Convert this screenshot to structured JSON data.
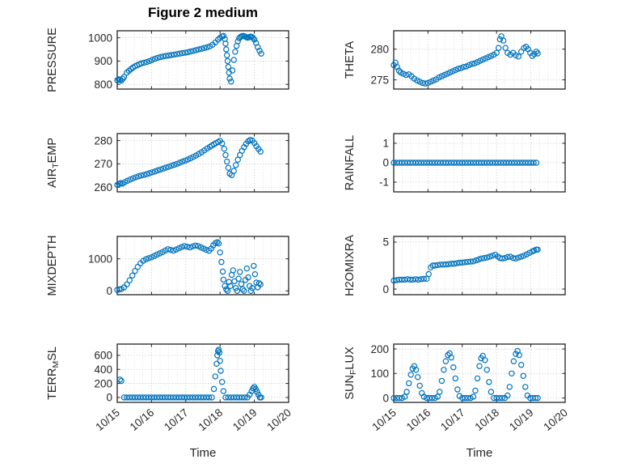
{
  "figure": {
    "title": "Figure 2 medium",
    "xlabel": "Time",
    "xtick_labels": [
      "10/15",
      "10/16",
      "10/17",
      "10/18",
      "10/19",
      "10/20"
    ],
    "accent_color": "#0072BD",
    "axis_color": "#222222",
    "text_color": "#262626",
    "grid_major_color": "#bdbdbd",
    "grid_minor_color": "#d9d9d9"
  },
  "chart_data": [
    {
      "type": "scatter",
      "marker": "o",
      "name": "pressure",
      "ylabel": "PRESSURE",
      "row": 0,
      "col": 0,
      "xlim": [
        0,
        5
      ],
      "ylim": [
        780,
        1030
      ],
      "yticks": [
        800,
        900,
        1000
      ],
      "x": [
        0,
        0.04,
        0.08,
        0.12,
        0.16,
        0.2,
        0.28,
        0.34,
        0.4,
        0.46,
        0.52,
        0.58,
        0.64,
        0.7,
        0.78,
        0.86,
        0.94,
        1.02,
        1.1,
        1.18,
        1.26,
        1.34,
        1.42,
        1.5,
        1.58,
        1.66,
        1.74,
        1.82,
        1.9,
        1.98,
        2.06,
        2.14,
        2.22,
        2.3,
        2.38,
        2.46,
        2.54,
        2.62,
        2.7,
        2.78,
        2.86,
        2.94,
        3,
        3.06,
        3.1,
        3.14,
        3.16,
        3.18,
        3.2,
        3.22,
        3.24,
        3.26,
        3.28,
        3.32,
        3.36,
        3.4,
        3.44,
        3.48,
        3.52,
        3.56,
        3.6,
        3.64,
        3.68,
        3.72,
        3.76,
        3.8,
        3.84,
        3.88,
        3.92,
        3.96,
        4,
        4.05,
        4.1,
        4.15,
        4.2
      ],
      "y": [
        818,
        822,
        820,
        816,
        824,
        832,
        850,
        858,
        866,
        872,
        878,
        882,
        886,
        890,
        893,
        896,
        900,
        905,
        910,
        914,
        917,
        920,
        922,
        924,
        926,
        928,
        930,
        932,
        934,
        936,
        938,
        941,
        944,
        947,
        950,
        953,
        956,
        959,
        963,
        970,
        980,
        992,
        1000,
        1006,
        1008,
        995,
        975,
        950,
        925,
        900,
        875,
        850,
        825,
        812,
        860,
        905,
        940,
        965,
        985,
        998,
        1004,
        1007,
        1008,
        1006,
        1003,
        1000,
        1002,
        1005,
        1004,
        1000,
        992,
        978,
        960,
        944,
        932
      ]
    },
    {
      "type": "scatter",
      "marker": "o",
      "name": "theta",
      "ylabel": "THETA",
      "row": 0,
      "col": 1,
      "xlim": [
        0,
        5
      ],
      "ylim": [
        273.5,
        283
      ],
      "yticks": [
        275,
        280
      ],
      "x": [
        0,
        0.05,
        0.1,
        0.15,
        0.2,
        0.28,
        0.36,
        0.44,
        0.52,
        0.6,
        0.68,
        0.76,
        0.84,
        0.92,
        1,
        1.08,
        1.16,
        1.24,
        1.32,
        1.4,
        1.48,
        1.56,
        1.64,
        1.72,
        1.8,
        1.88,
        1.96,
        2.04,
        2.12,
        2.2,
        2.28,
        2.36,
        2.44,
        2.52,
        2.6,
        2.68,
        2.76,
        2.84,
        2.92,
        3,
        3.06,
        3.1,
        3.14,
        3.2,
        3.26,
        3.32,
        3.4,
        3.48,
        3.56,
        3.64,
        3.72,
        3.8,
        3.86,
        3.92,
        3.98,
        4.04,
        4.1,
        4.16,
        4.2
      ],
      "y": [
        277.4,
        277.8,
        277.1,
        276.5,
        276.2,
        276,
        275.8,
        275.9,
        275.6,
        275.2,
        274.9,
        274.7,
        274.5,
        274.4,
        274.5,
        274.7,
        274.9,
        275.1,
        275.4,
        275.6,
        275.8,
        276,
        276.2,
        276.4,
        276.6,
        276.8,
        276.9,
        277.1,
        277.2,
        277.4,
        277.6,
        277.7,
        277.9,
        278.1,
        278.3,
        278.5,
        278.7,
        278.9,
        279.1,
        279.4,
        280.2,
        281.6,
        282.1,
        281.4,
        280.2,
        279.4,
        279.1,
        279.4,
        279,
        278.8,
        279.6,
        280.2,
        280.4,
        280,
        279.4,
        278.9,
        279.2,
        279.6,
        279.3
      ]
    },
    {
      "type": "scatter",
      "marker": "o",
      "name": "air-temp",
      "ylabel": "AIR_{T}EMP",
      "row": 1,
      "col": 0,
      "xlim": [
        0,
        5
      ],
      "ylim": [
        258,
        283
      ],
      "yticks": [
        260,
        270,
        280
      ],
      "x": [
        0,
        0.05,
        0.1,
        0.15,
        0.22,
        0.3,
        0.38,
        0.46,
        0.54,
        0.62,
        0.7,
        0.78,
        0.86,
        0.94,
        1.02,
        1.1,
        1.18,
        1.26,
        1.34,
        1.42,
        1.5,
        1.58,
        1.66,
        1.74,
        1.82,
        1.9,
        1.98,
        2.06,
        2.14,
        2.22,
        2.3,
        2.38,
        2.46,
        2.54,
        2.62,
        2.7,
        2.76,
        2.82,
        2.88,
        2.94,
        3,
        3.06,
        3.12,
        3.16,
        3.2,
        3.24,
        3.28,
        3.34,
        3.4,
        3.46,
        3.52,
        3.58,
        3.64,
        3.7,
        3.76,
        3.82,
        3.88,
        3.94,
        4,
        4.06,
        4.12,
        4.18
      ],
      "y": [
        261,
        261.4,
        261.8,
        261.5,
        262.2,
        262.8,
        263.3,
        263.8,
        264.3,
        264.7,
        265,
        265.3,
        265.6,
        266,
        266.4,
        266.8,
        267.2,
        267.6,
        268,
        268.4,
        268.8,
        269.2,
        269.6,
        270,
        270.5,
        271,
        271.4,
        271.9,
        272.4,
        273,
        273.6,
        274.3,
        275,
        275.8,
        276.6,
        277.3,
        277.9,
        278.4,
        278.9,
        279.4,
        279.9,
        278.8,
        276.5,
        273.8,
        271,
        268.3,
        265.8,
        265.2,
        267,
        269.5,
        271.8,
        273.8,
        275.6,
        277.2,
        278.6,
        279.7,
        280.3,
        280,
        278.9,
        277.6,
        276.4,
        275.3
      ]
    },
    {
      "type": "scatter",
      "marker": "o",
      "name": "rainfall",
      "ylabel": "RAINFALL",
      "row": 1,
      "col": 1,
      "xlim": [
        0,
        5
      ],
      "ylim": [
        -1.5,
        1.5
      ],
      "yticks": [
        -1,
        0,
        1
      ],
      "x": [
        0,
        0.08,
        0.16,
        0.24,
        0.32,
        0.4,
        0.48,
        0.56,
        0.64,
        0.72,
        0.8,
        0.88,
        0.96,
        1.04,
        1.12,
        1.2,
        1.28,
        1.36,
        1.44,
        1.52,
        1.6,
        1.68,
        1.76,
        1.84,
        1.92,
        2,
        2.08,
        2.16,
        2.24,
        2.32,
        2.4,
        2.48,
        2.56,
        2.64,
        2.72,
        2.8,
        2.88,
        2.96,
        3.04,
        3.12,
        3.2,
        3.28,
        3.36,
        3.44,
        3.52,
        3.6,
        3.68,
        3.76,
        3.84,
        3.92,
        4,
        4.08,
        4.16
      ],
      "y": [
        0,
        0,
        0,
        0,
        0,
        0,
        0,
        0,
        0,
        0,
        0,
        0,
        0,
        0,
        0,
        0,
        0,
        0,
        0,
        0,
        0,
        0,
        0,
        0,
        0,
        0,
        0,
        0,
        0,
        0,
        0,
        0,
        0,
        0,
        0,
        0,
        0,
        0,
        0,
        0,
        0,
        0,
        0,
        0,
        0,
        0,
        0,
        0,
        0,
        0,
        0,
        0,
        0
      ]
    },
    {
      "type": "scatter",
      "marker": "o",
      "name": "mixdepth",
      "ylabel": "MIXDEPTH",
      "row": 2,
      "col": 0,
      "xlim": [
        0,
        5
      ],
      "ylim": [
        -120,
        1700
      ],
      "yticks": [
        0,
        1000
      ],
      "x": [
        0,
        0.06,
        0.12,
        0.2,
        0.28,
        0.36,
        0.44,
        0.52,
        0.6,
        0.68,
        0.76,
        0.84,
        0.92,
        1,
        1.08,
        1.16,
        1.24,
        1.32,
        1.4,
        1.48,
        1.56,
        1.64,
        1.72,
        1.8,
        1.88,
        1.96,
        2.04,
        2.12,
        2.2,
        2.28,
        2.36,
        2.44,
        2.52,
        2.6,
        2.68,
        2.74,
        2.8,
        2.86,
        2.92,
        2.96,
        3,
        3.04,
        3.08,
        3.1,
        3.14,
        3.18,
        3.22,
        3.26,
        3.3,
        3.34,
        3.38,
        3.42,
        3.46,
        3.5,
        3.54,
        3.58,
        3.62,
        3.66,
        3.7,
        3.74,
        3.78,
        3.82,
        3.86,
        3.9,
        3.94,
        3.98,
        4.02,
        4.06,
        4.1,
        4.14,
        4.18
      ],
      "y": [
        30,
        45,
        60,
        110,
        200,
        330,
        480,
        620,
        750,
        860,
        940,
        990,
        1020,
        1050,
        1090,
        1130,
        1170,
        1210,
        1260,
        1300,
        1280,
        1255,
        1290,
        1330,
        1370,
        1400,
        1380,
        1355,
        1390,
        1415,
        1400,
        1360,
        1320,
        1280,
        1250,
        1320,
        1420,
        1490,
        1520,
        1480,
        1200,
        900,
        600,
        350,
        150,
        50,
        0,
        280,
        150,
        500,
        640,
        300,
        90,
        0,
        380,
        590,
        210,
        50,
        0,
        340,
        700,
        420,
        150,
        0,
        90,
        780,
        520,
        260,
        110,
        240,
        200
      ]
    },
    {
      "type": "scatter",
      "marker": "o",
      "name": "h2omixra",
      "ylabel": "H2OMIXRA",
      "row": 2,
      "col": 1,
      "xlim": [
        0,
        5
      ],
      "ylim": [
        -0.6,
        5.6
      ],
      "yticks": [
        0,
        5
      ],
      "x": [
        0,
        0.08,
        0.16,
        0.24,
        0.32,
        0.4,
        0.48,
        0.56,
        0.64,
        0.72,
        0.8,
        0.88,
        0.96,
        1.02,
        1.08,
        1.14,
        1.2,
        1.28,
        1.36,
        1.44,
        1.52,
        1.6,
        1.68,
        1.76,
        1.84,
        1.92,
        2,
        2.08,
        2.16,
        2.24,
        2.32,
        2.4,
        2.48,
        2.56,
        2.64,
        2.72,
        2.8,
        2.88,
        2.96,
        3.04,
        3.1,
        3.16,
        3.24,
        3.32,
        3.4,
        3.48,
        3.56,
        3.64,
        3.72,
        3.8,
        3.88,
        3.96,
        4.04,
        4.1,
        4.16,
        4.2
      ],
      "y": [
        0.9,
        0.95,
        1,
        1,
        1,
        1.05,
        1,
        1,
        1.05,
        1,
        1.05,
        1.1,
        1.1,
        1.6,
        2.3,
        2.5,
        2.5,
        2.55,
        2.6,
        2.6,
        2.62,
        2.65,
        2.7,
        2.7,
        2.75,
        2.8,
        2.82,
        2.85,
        2.9,
        2.92,
        2.95,
        3.05,
        3.15,
        3.25,
        3.3,
        3.35,
        3.45,
        3.55,
        3.65,
        3.45,
        3.3,
        3.25,
        3.3,
        3.4,
        3.45,
        3.3,
        3.25,
        3.35,
        3.45,
        3.55,
        3.7,
        3.85,
        4,
        4.1,
        4.2,
        4.2
      ]
    },
    {
      "type": "scatter",
      "marker": "o",
      "name": "terr-msl",
      "ylabel": "TERR_{M}SL",
      "row": 3,
      "col": 0,
      "xlim": [
        0,
        5
      ],
      "ylim": [
        -70,
        760
      ],
      "yticks": [
        0,
        200,
        400,
        600
      ],
      "x": [
        0.08,
        0.12,
        0.2,
        0.28,
        0.36,
        0.44,
        0.52,
        0.6,
        0.68,
        0.76,
        0.84,
        0.92,
        1,
        1.08,
        1.16,
        1.24,
        1.32,
        1.4,
        1.48,
        1.56,
        1.64,
        1.72,
        1.8,
        1.88,
        1.96,
        2.04,
        2.12,
        2.2,
        2.28,
        2.36,
        2.44,
        2.52,
        2.6,
        2.68,
        2.76,
        2.82,
        2.86,
        2.9,
        2.92,
        2.94,
        2.96,
        2.98,
        3,
        3.02,
        3.06,
        3.1,
        3.16,
        3.24,
        3.32,
        3.4,
        3.48,
        3.56,
        3.64,
        3.72,
        3.8,
        3.86,
        3.92,
        3.96,
        4,
        4.04,
        4.08,
        4.12,
        4.16,
        4.2
      ],
      "y": [
        255,
        235,
        0,
        0,
        0,
        0,
        0,
        0,
        0,
        0,
        0,
        0,
        0,
        0,
        0,
        0,
        0,
        0,
        0,
        0,
        0,
        0,
        0,
        0,
        0,
        0,
        0,
        0,
        0,
        0,
        0,
        0,
        0,
        0,
        0,
        120,
        300,
        480,
        600,
        660,
        680,
        640,
        520,
        380,
        220,
        90,
        0,
        0,
        0,
        0,
        0,
        0,
        0,
        0,
        0,
        40,
        90,
        130,
        150,
        120,
        80,
        40,
        0,
        0
      ]
    },
    {
      "type": "scatter",
      "marker": "o",
      "name": "sun-flux",
      "ylabel": "SUN_{F}LUX",
      "row": 3,
      "col": 1,
      "xlim": [
        0,
        5
      ],
      "ylim": [
        -18,
        220
      ],
      "yticks": [
        0,
        100,
        200
      ],
      "x": [
        0,
        0.08,
        0.16,
        0.24,
        0.32,
        0.38,
        0.44,
        0.5,
        0.55,
        0.6,
        0.65,
        0.7,
        0.76,
        0.82,
        0.88,
        0.96,
        1.04,
        1.12,
        1.2,
        1.28,
        1.34,
        1.4,
        1.46,
        1.52,
        1.58,
        1.63,
        1.68,
        1.74,
        1.8,
        1.86,
        1.92,
        2,
        2.08,
        2.16,
        2.24,
        2.32,
        2.38,
        2.44,
        2.5,
        2.55,
        2.6,
        2.66,
        2.72,
        2.78,
        2.84,
        2.92,
        3,
        3.08,
        3.16,
        3.24,
        3.32,
        3.38,
        3.44,
        3.5,
        3.56,
        3.61,
        3.66,
        3.72,
        3.78,
        3.84,
        3.9,
        3.98,
        4.06,
        4.14,
        4.2
      ],
      "y": [
        0,
        0,
        0,
        0,
        5,
        25,
        60,
        95,
        120,
        130,
        115,
        85,
        50,
        20,
        5,
        0,
        0,
        0,
        0,
        5,
        25,
        70,
        115,
        150,
        175,
        182,
        165,
        125,
        80,
        35,
        8,
        0,
        0,
        0,
        0,
        5,
        30,
        80,
        130,
        162,
        172,
        155,
        115,
        65,
        25,
        0,
        0,
        0,
        0,
        0,
        10,
        45,
        100,
        150,
        180,
        192,
        175,
        135,
        90,
        45,
        10,
        0,
        0,
        0,
        0
      ]
    }
  ]
}
